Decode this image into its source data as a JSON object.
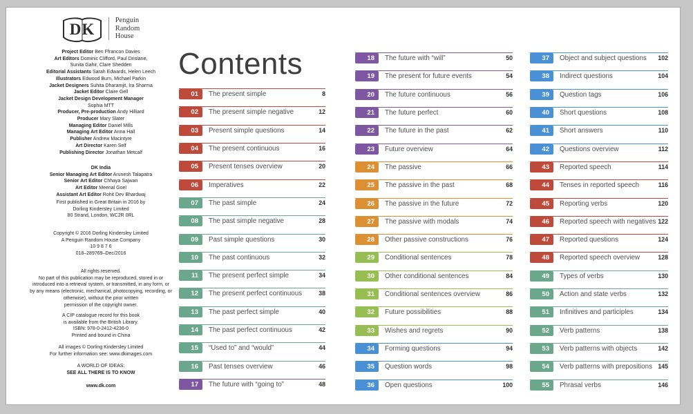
{
  "left_panel": {
    "logo": {
      "dk_text": "DK",
      "brand_lines": [
        "Penguin",
        "Random",
        "House"
      ]
    },
    "credits_uk": [
      {
        "label": "Project Editor",
        "name": "Ben Ffrancon Davies"
      },
      {
        "label": "Art Editors",
        "name": "Dominic Clifford, Paul Drislane,"
      },
      {
        "label": "",
        "name": "Sunita Gahir, Clare Shedden"
      },
      {
        "label": "Editorial Assistants",
        "name": "Sarah Edwards, Helen Leech"
      },
      {
        "label": "Illustrators",
        "name": "Edwood Burn, Michael Parkin"
      },
      {
        "label": "Jacket Designers",
        "name": "Suhita Dharamjit, Ira Sharma"
      },
      {
        "label": "Jacket Editor",
        "name": "Claire Gell"
      },
      {
        "label": "Jacket Design Development Manager",
        "name": ""
      },
      {
        "label": "",
        "name": "Sophia MTT"
      },
      {
        "label": "Producer, Pre-production",
        "name": "Andy Hilliard"
      },
      {
        "label": "Producer",
        "name": "Mary Slater"
      },
      {
        "label": "Managing Editor",
        "name": "Daniel Mills"
      },
      {
        "label": "Managing Art Editor",
        "name": "Anna Hall"
      },
      {
        "label": "Publisher",
        "name": "Andrew Macintyre"
      },
      {
        "label": "Art Director",
        "name": "Karen Self"
      },
      {
        "label": "Publishing Director",
        "name": "Jonathan Metcalf"
      }
    ],
    "credits_india_title": "DK India",
    "credits_india": [
      {
        "label": "Senior Managing Art Editor",
        "name": "Arunesh Talapatra"
      },
      {
        "label": "Senior Art Editor",
        "name": "Chhaya Sajwan"
      },
      {
        "label": "Art Editor",
        "name": "Meenal Goel"
      },
      {
        "label": "Assistant Art Editor",
        "name": "Rohit Dev Bhardwaj"
      }
    ],
    "publication": [
      "First published in Great Britain in 2016 by",
      "Dorling Kindersley Limited",
      "80 Strand, London, WC2R 0RL"
    ],
    "copyright": [
      "Copyright © 2016 Dorling Kindersley Limited",
      "A Penguin Random House Company",
      "10 9 8 7 6",
      "018–289769–Dec/2016"
    ],
    "rights": [
      "All rights reserved.",
      "No part of this publication may be reproduced, stored in or",
      "introduced into a retrieval system, or transmitted, in any form, or",
      "by any means (electronic, mechanical, photocopying, recording, or",
      "otherwise), without the prior written",
      "permission of the copyright owner."
    ],
    "cip": [
      "A CIP catalogue record for this book",
      "is available from the British Library.",
      "ISBN: 978-0-2412-4236-0",
      "Printed and bound in China"
    ],
    "images_note": [
      "All images © Dorling Kindersley Limited",
      "For further information see: www.dkimages.com"
    ],
    "tagline_top": "A WORLD OF IDEAS:",
    "tagline_bold": "SEE ALL THERE IS TO KNOW",
    "website": "www.dk.com"
  },
  "contents": {
    "title": "Contents",
    "palette": {
      "red": "#bd4a3a",
      "teal": "#6ba78d",
      "purple": "#7d57a2",
      "orange": "#dd8f33",
      "green": "#96be52",
      "blue": "#4a90d4"
    },
    "columns": [
      {
        "items": [
          {
            "num": "01",
            "title": "The present simple",
            "page": "8",
            "c": "red"
          },
          {
            "num": "02",
            "title": "The present simple negative",
            "page": "12",
            "c": "red"
          },
          {
            "num": "03",
            "title": "Present simple questions",
            "page": "14",
            "c": "red"
          },
          {
            "num": "04",
            "title": "The present continuous",
            "page": "16",
            "c": "red"
          },
          {
            "num": "05",
            "title": "Present tenses overview",
            "page": "20",
            "c": "red"
          },
          {
            "num": "06",
            "title": "Imperatives",
            "page": "22",
            "c": "red"
          },
          {
            "num": "07",
            "title": "The past simple",
            "page": "24",
            "c": "teal"
          },
          {
            "num": "08",
            "title": "The past simple negative",
            "page": "28",
            "c": "teal"
          },
          {
            "num": "09",
            "title": "Past simple questions",
            "page": "30",
            "c": "teal"
          },
          {
            "num": "10",
            "title": "The past continuous",
            "page": "32",
            "c": "teal"
          },
          {
            "num": "11",
            "title": "The present perfect simple",
            "page": "34",
            "c": "teal"
          },
          {
            "num": "12",
            "title": "The present perfect continuous",
            "page": "38",
            "c": "teal"
          },
          {
            "num": "13",
            "title": "The past perfect simple",
            "page": "40",
            "c": "teal"
          },
          {
            "num": "14",
            "title": "The past perfect continuous",
            "page": "42",
            "c": "teal"
          },
          {
            "num": "15",
            "title": "“Used to” and “would”",
            "page": "44",
            "c": "teal"
          },
          {
            "num": "16",
            "title": "Past tenses overview",
            "page": "46",
            "c": "teal"
          },
          {
            "num": "17",
            "title": "The future with “going to”",
            "page": "48",
            "c": "purple"
          }
        ]
      },
      {
        "items": [
          {
            "num": "18",
            "title": "The future with “will”",
            "page": "50",
            "c": "purple"
          },
          {
            "num": "19",
            "title": "The present for future events",
            "page": "54",
            "c": "purple"
          },
          {
            "num": "20",
            "title": "The future continuous",
            "page": "56",
            "c": "purple"
          },
          {
            "num": "21",
            "title": "The future perfect",
            "page": "60",
            "c": "purple"
          },
          {
            "num": "22",
            "title": "The future in the past",
            "page": "62",
            "c": "purple"
          },
          {
            "num": "23",
            "title": "Future overview",
            "page": "64",
            "c": "purple"
          },
          {
            "num": "24",
            "title": "The passive",
            "page": "66",
            "c": "orange"
          },
          {
            "num": "25",
            "title": "The passive in the past",
            "page": "68",
            "c": "orange"
          },
          {
            "num": "26",
            "title": "The passive in the future",
            "page": "72",
            "c": "orange"
          },
          {
            "num": "27",
            "title": "The passive with modals",
            "page": "74",
            "c": "orange"
          },
          {
            "num": "28",
            "title": "Other passive constructions",
            "page": "76",
            "c": "orange"
          },
          {
            "num": "29",
            "title": "Conditional sentences",
            "page": "78",
            "c": "green"
          },
          {
            "num": "30",
            "title": "Other conditional sentences",
            "page": "84",
            "c": "green"
          },
          {
            "num": "31",
            "title": "Conditional sentences overview",
            "page": "86",
            "c": "green"
          },
          {
            "num": "32",
            "title": "Future possibilities",
            "page": "88",
            "c": "green"
          },
          {
            "num": "33",
            "title": "Wishes and regrets",
            "page": "90",
            "c": "green"
          },
          {
            "num": "34",
            "title": "Forming questions",
            "page": "94",
            "c": "blue"
          },
          {
            "num": "35",
            "title": "Question words",
            "page": "98",
            "c": "blue"
          },
          {
            "num": "36",
            "title": "Open questions",
            "page": "100",
            "c": "blue"
          }
        ]
      },
      {
        "items": [
          {
            "num": "37",
            "title": "Object and subject questions",
            "page": "102",
            "c": "blue"
          },
          {
            "num": "38",
            "title": "Indirect questions",
            "page": "104",
            "c": "blue"
          },
          {
            "num": "39",
            "title": "Question tags",
            "page": "106",
            "c": "blue"
          },
          {
            "num": "40",
            "title": "Short questions",
            "page": "108",
            "c": "blue"
          },
          {
            "num": "41",
            "title": "Short answers",
            "page": "110",
            "c": "blue"
          },
          {
            "num": "42",
            "title": "Questions overview",
            "page": "112",
            "c": "blue"
          },
          {
            "num": "43",
            "title": "Reported speech",
            "page": "114",
            "c": "red"
          },
          {
            "num": "44",
            "title": "Tenses in reported speech",
            "page": "116",
            "c": "red"
          },
          {
            "num": "45",
            "title": "Reporting verbs",
            "page": "120",
            "c": "red"
          },
          {
            "num": "46",
            "title": "Reported speech with negatives",
            "page": "122",
            "c": "red"
          },
          {
            "num": "47",
            "title": "Reported questions",
            "page": "124",
            "c": "red"
          },
          {
            "num": "48",
            "title": "Reported speech overview",
            "page": "128",
            "c": "red"
          },
          {
            "num": "49",
            "title": "Types of verbs",
            "page": "130",
            "c": "teal"
          },
          {
            "num": "50",
            "title": "Action and state verbs",
            "page": "132",
            "c": "teal"
          },
          {
            "num": "51",
            "title": "Infinitives and participles",
            "page": "134",
            "c": "teal"
          },
          {
            "num": "52",
            "title": "Verb patterns",
            "page": "138",
            "c": "teal"
          },
          {
            "num": "53",
            "title": "Verb patterns with objects",
            "page": "142",
            "c": "teal"
          },
          {
            "num": "54",
            "title": "Verb patterns with prepositions",
            "page": "145",
            "c": "teal"
          },
          {
            "num": "55",
            "title": "Phrasal verbs",
            "page": "146",
            "c": "teal"
          }
        ]
      }
    ]
  }
}
